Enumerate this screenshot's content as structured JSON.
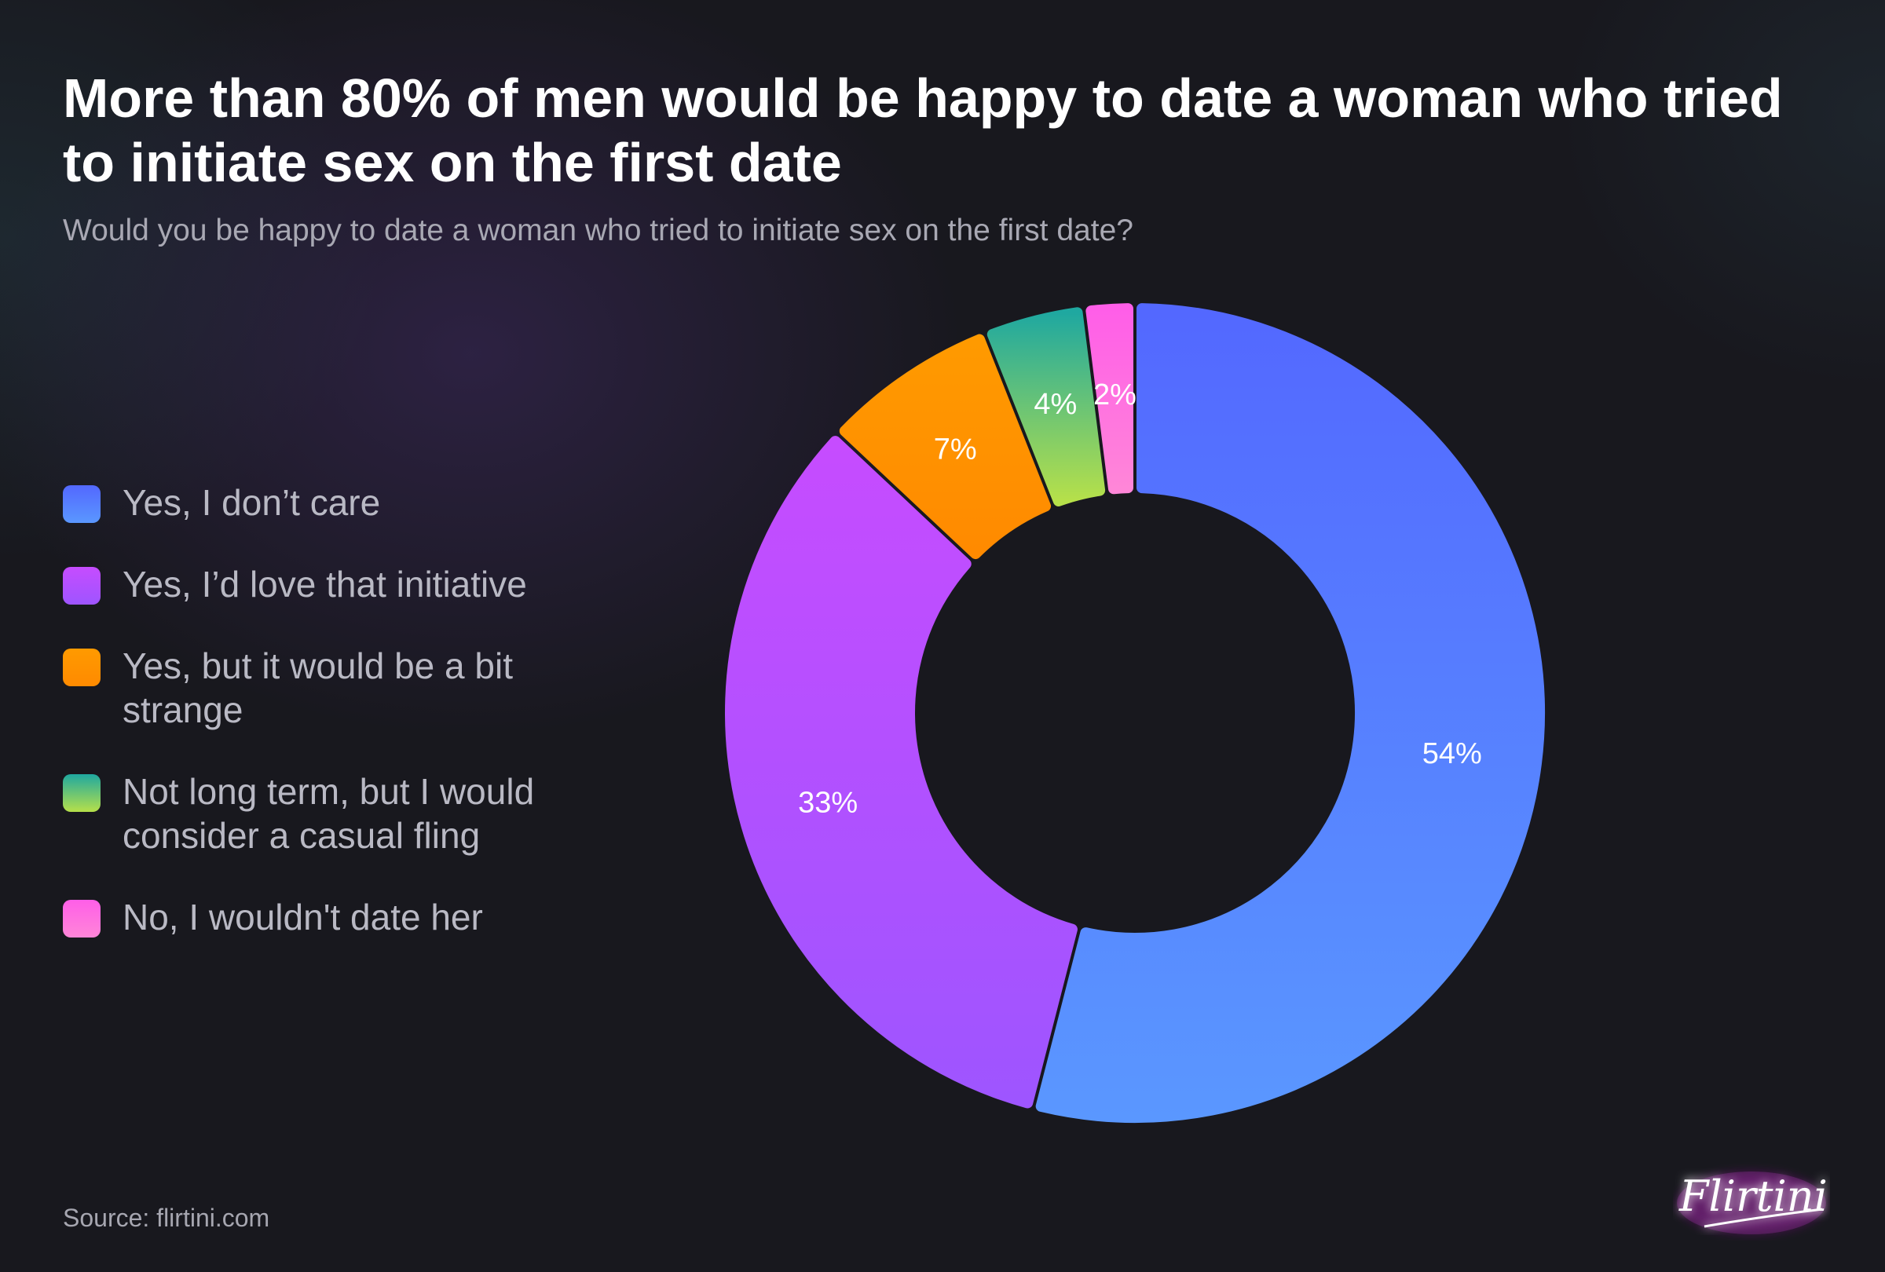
{
  "header": {
    "title": "More than 80% of men would be happy to date a woman who tried to initiate sex on the first date",
    "subtitle": "Would you be happy to date a woman who tried to initiate sex on the first date?"
  },
  "legend": {
    "items": [
      {
        "label": "Yes, I don’t care",
        "color_top": "#5368ff",
        "color_bottom": "#5a97ff"
      },
      {
        "label": "Yes, I’d love that initiative",
        "color_top": "#c64cff",
        "color_bottom": "#9e55ff"
      },
      {
        "label": "Yes, but it would be a bit strange",
        "color_top": "#ff9a00",
        "color_bottom": "#ff8a00"
      },
      {
        "label": "Not long term, but I would consider a casual fling",
        "color_top": "#1fa8a0",
        "color_bottom": "#b6e04a"
      },
      {
        "label": "No, I wouldn't date her",
        "color_top": "#ff5ee8",
        "color_bottom": "#ff86d8"
      }
    ]
  },
  "chart_data": {
    "type": "pie",
    "donut": true,
    "title": "More than 80% of men would be happy to date a woman who tried to initiate sex on the first date",
    "subtitle": "Would you be happy to date a woman who tried to initiate sex on the first date?",
    "categories": [
      "Yes, I don’t care",
      "Yes, I’d love that initiative",
      "Yes, but it would be a bit strange",
      "Not long term, but I would consider a casual fling",
      "No, I wouldn't date her"
    ],
    "values": [
      54,
      33,
      7,
      4,
      2
    ],
    "data_labels": [
      "54%",
      "33%",
      "7%",
      "4%",
      "2%"
    ],
    "legend_position": "left"
  },
  "footer": {
    "source": "Source: flirtini.com",
    "logo_text": "Flirtini"
  }
}
